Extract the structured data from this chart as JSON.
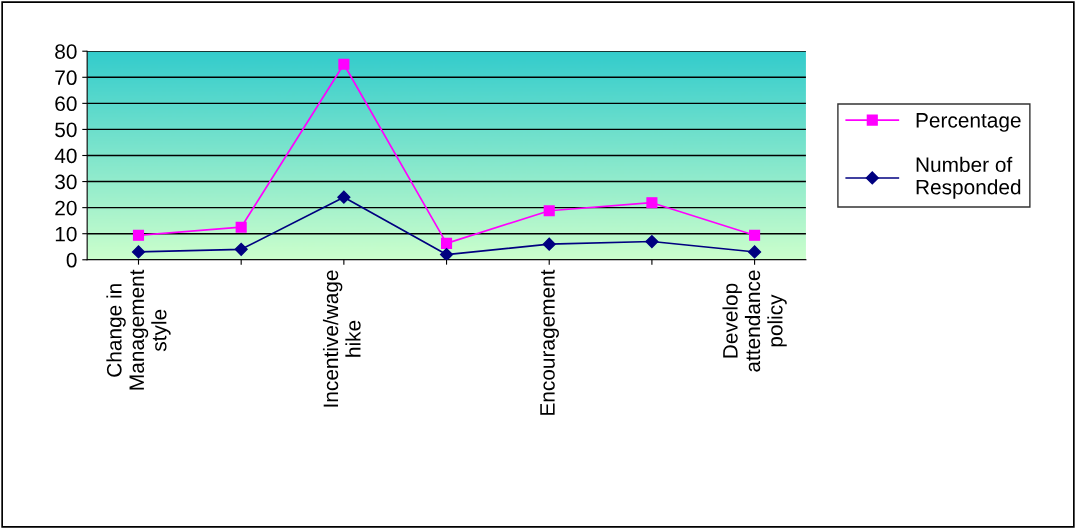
{
  "chart_data": {
    "type": "line",
    "categories": [
      "Change in\nManagement\nstyle",
      null,
      "Incentive/wage\nhike",
      null,
      "Encouragement",
      null,
      "Develop\nattendance\npolicy"
    ],
    "series": [
      {
        "name": "Percentage",
        "color": "#ff00ff",
        "marker": "square",
        "values": [
          9.4,
          12.5,
          75,
          6.3,
          18.8,
          21.9,
          9.4
        ]
      },
      {
        "name": "Number of\nResponded",
        "color": "#000080",
        "marker": "diamond",
        "values": [
          3,
          4,
          24,
          2,
          6,
          7,
          3
        ]
      }
    ],
    "ylim": [
      0,
      80
    ],
    "yticks": [
      0,
      10,
      20,
      30,
      40,
      50,
      60,
      70,
      80
    ],
    "grid": "y",
    "legend": "right"
  }
}
